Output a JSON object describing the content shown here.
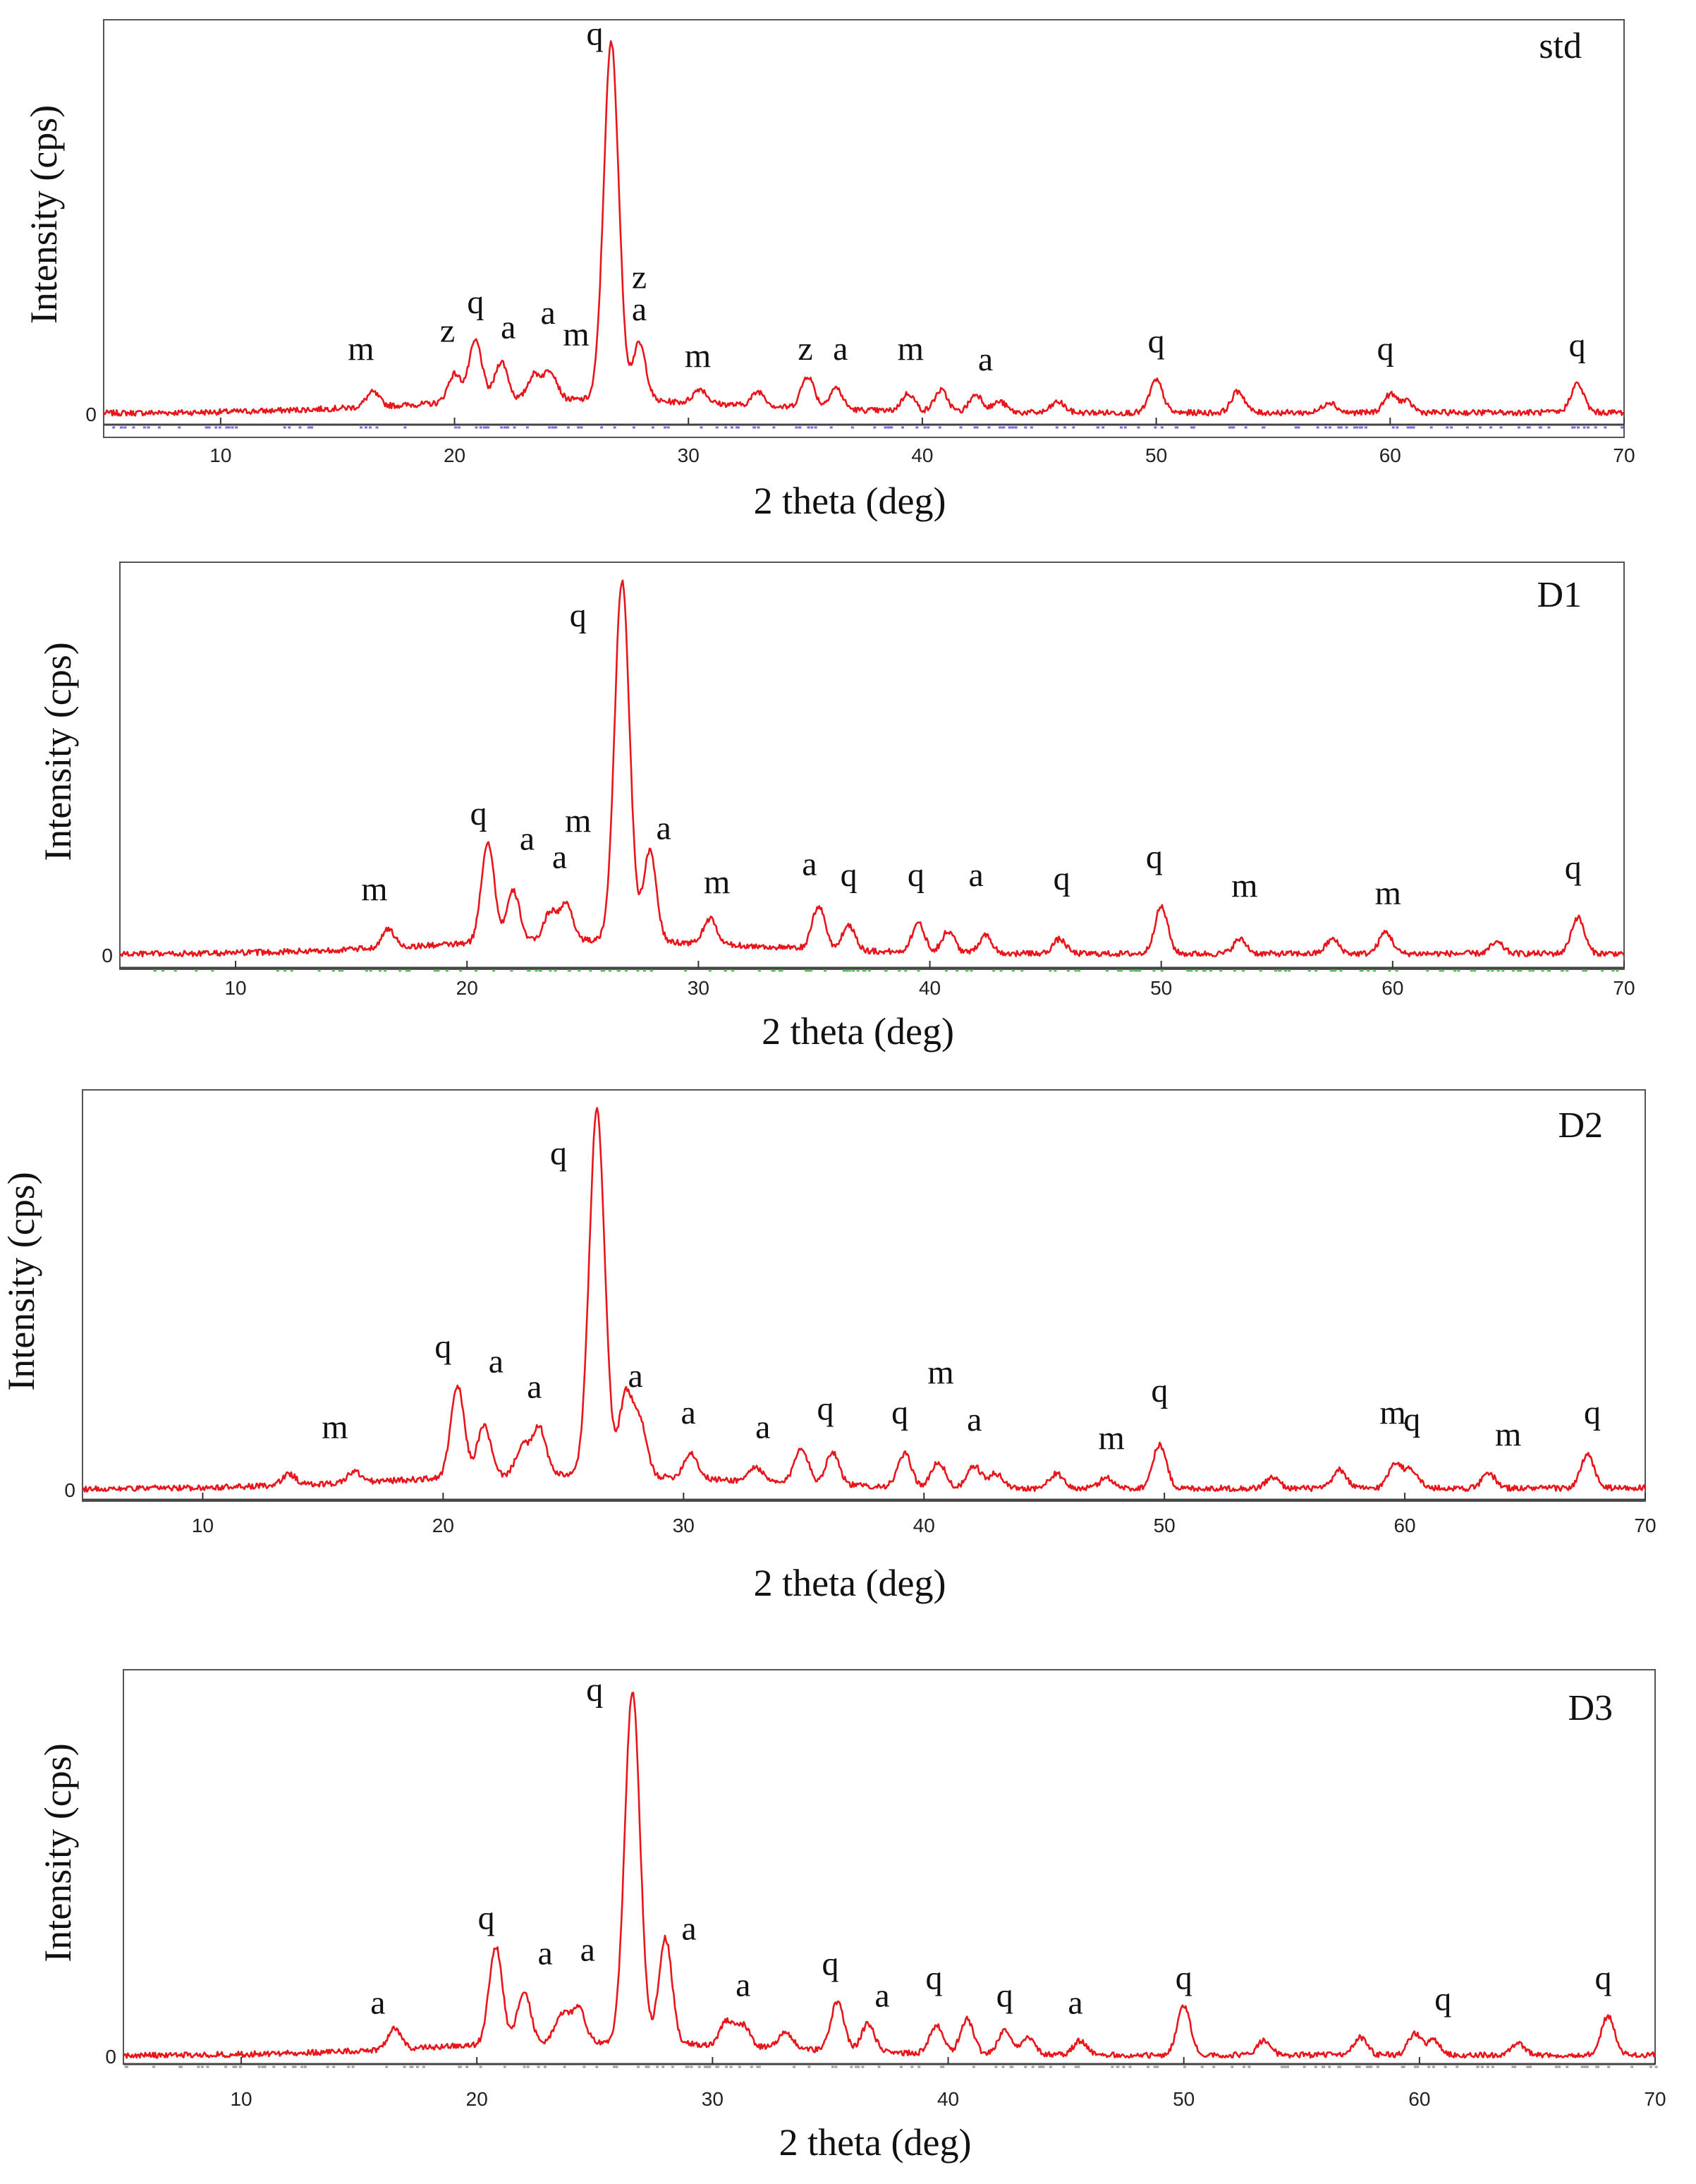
{
  "colors": {
    "trace": "#e8151b",
    "frame": "#555555",
    "text": "#111111",
    "hkl_d1": "#5bbf5b",
    "hkl_std": "#7c6cf0",
    "hkl_d3": "#9aa0a6"
  },
  "chart_data": [
    {
      "type": "line",
      "sample": "std",
      "xlabel": "2 theta (deg)",
      "ylabel": "Intensity (cps)",
      "xlim": [
        5,
        70
      ],
      "ylim": [
        0,
        105
      ],
      "xticks": [
        10,
        20,
        30,
        40,
        50,
        60,
        70
      ],
      "ytick_label": "0",
      "grid": false,
      "peaks": [
        [
          16.5,
          4
        ],
        [
          20.0,
          8
        ],
        [
          20.9,
          17
        ],
        [
          22.0,
          11
        ],
        [
          23.4,
          7
        ],
        [
          24.1,
          8
        ],
        [
          26.7,
          100
        ],
        [
          27.9,
          16
        ],
        [
          30.5,
          4
        ],
        [
          33.0,
          4
        ],
        [
          35.1,
          9
        ],
        [
          36.3,
          6
        ],
        [
          39.4,
          5
        ],
        [
          40.8,
          6
        ],
        [
          42.3,
          5
        ],
        [
          43.3,
          3
        ],
        [
          45.8,
          3
        ],
        [
          50.0,
          9
        ],
        [
          53.5,
          6
        ],
        [
          57.4,
          3
        ],
        [
          60.0,
          5
        ],
        [
          60.7,
          3
        ],
        [
          68.0,
          8
        ]
      ],
      "annotations": [
        [
          "m",
          16.0,
          16
        ],
        [
          "z",
          19.7,
          21
        ],
        [
          "q",
          20.9,
          29
        ],
        [
          "a",
          22.3,
          22
        ],
        [
          "a",
          24.0,
          26
        ],
        [
          "m",
          25.2,
          20
        ],
        [
          "q",
          26.0,
          104
        ],
        [
          "z",
          27.9,
          36
        ],
        [
          "a",
          27.9,
          27
        ],
        [
          "m",
          30.4,
          14
        ],
        [
          "z",
          35.0,
          16
        ],
        [
          "a",
          36.5,
          16
        ],
        [
          "m",
          39.5,
          16
        ],
        [
          "a",
          42.7,
          13
        ],
        [
          "q",
          50.0,
          18
        ],
        [
          "q",
          59.8,
          16
        ],
        [
          "q",
          68.0,
          17
        ]
      ]
    },
    {
      "type": "line",
      "sample": "D1",
      "xlabel": "2 theta (deg)",
      "ylabel": "Intensity (cps)",
      "xlim": [
        5,
        70
      ],
      "ylim": [
        0,
        105
      ],
      "xticks": [
        10,
        20,
        30,
        40,
        50,
        60,
        70
      ],
      "ytick_label": "0",
      "grid": false,
      "peaks": [
        [
          16.6,
          5
        ],
        [
          20.9,
          28
        ],
        [
          22.0,
          14
        ],
        [
          23.6,
          8
        ],
        [
          24.3,
          10
        ],
        [
          26.7,
          100
        ],
        [
          27.9,
          25
        ],
        [
          30.5,
          7
        ],
        [
          35.2,
          12
        ],
        [
          36.5,
          7
        ],
        [
          39.5,
          8
        ],
        [
          40.8,
          6
        ],
        [
          42.4,
          5
        ],
        [
          45.6,
          4
        ],
        [
          50.0,
          13
        ],
        [
          53.4,
          4
        ],
        [
          57.4,
          4
        ],
        [
          59.7,
          6
        ],
        [
          64.5,
          3
        ],
        [
          68.0,
          10
        ]
      ],
      "annotations": [
        [
          "m",
          16.0,
          16
        ],
        [
          "q",
          20.5,
          37
        ],
        [
          "a",
          22.6,
          30
        ],
        [
          "m",
          24.8,
          35
        ],
        [
          "a",
          24.0,
          25
        ],
        [
          "q",
          24.8,
          92
        ],
        [
          "a",
          28.5,
          33
        ],
        [
          "m",
          30.8,
          18
        ],
        [
          "a",
          34.8,
          23
        ],
        [
          "q",
          36.5,
          20
        ],
        [
          "q",
          39.4,
          20
        ],
        [
          "a",
          42.0,
          20
        ],
        [
          "q",
          45.7,
          19
        ],
        [
          "q",
          49.7,
          25
        ],
        [
          "m",
          53.6,
          17
        ],
        [
          "m",
          59.8,
          15
        ],
        [
          "q",
          67.8,
          22
        ]
      ]
    },
    {
      "type": "line",
      "sample": "D2",
      "xlabel": "2 theta (deg)",
      "ylabel": "Intensity (cps)",
      "xlim": [
        5,
        70
      ],
      "ylim": [
        0,
        105
      ],
      "xticks": [
        10,
        20,
        30,
        40,
        50,
        60,
        70
      ],
      "ytick_label": "0",
      "grid": false,
      "peaks": [
        [
          13.6,
          3
        ],
        [
          16.3,
          3
        ],
        [
          20.6,
          25
        ],
        [
          21.7,
          14
        ],
        [
          23.3,
          8
        ],
        [
          24.0,
          13
        ],
        [
          26.4,
          100
        ],
        [
          27.6,
          22
        ],
        [
          28.2,
          14
        ],
        [
          30.3,
          7
        ],
        [
          33.0,
          4
        ],
        [
          34.9,
          10
        ],
        [
          36.2,
          9
        ],
        [
          39.2,
          9
        ],
        [
          40.6,
          7
        ],
        [
          42.1,
          6
        ],
        [
          43.0,
          4
        ],
        [
          45.5,
          4
        ],
        [
          47.6,
          3
        ],
        [
          49.8,
          12
        ],
        [
          54.5,
          3
        ],
        [
          57.3,
          5
        ],
        [
          59.6,
          7
        ],
        [
          60.3,
          5
        ],
        [
          63.5,
          4
        ],
        [
          67.6,
          9
        ]
      ],
      "annotations": [
        [
          "m",
          15.5,
          15
        ],
        [
          "q",
          20.0,
          37
        ],
        [
          "a",
          22.2,
          33
        ],
        [
          "a",
          23.8,
          26
        ],
        [
          "q",
          24.8,
          90
        ],
        [
          "a",
          28.0,
          29
        ],
        [
          "a",
          30.2,
          19
        ],
        [
          "a",
          33.3,
          15
        ],
        [
          "q",
          35.9,
          20
        ],
        [
          "q",
          39.0,
          19
        ],
        [
          "m",
          40.7,
          30
        ],
        [
          "a",
          42.1,
          17
        ],
        [
          "m",
          47.8,
          12
        ],
        [
          "q",
          49.8,
          25
        ],
        [
          "m",
          59.5,
          19
        ],
        [
          "q",
          60.3,
          17
        ],
        [
          "m",
          64.3,
          13
        ],
        [
          "q",
          67.8,
          19
        ]
      ]
    },
    {
      "type": "line",
      "sample": "D3",
      "xlabel": "2 theta (deg)",
      "ylabel": "Intensity (cps)",
      "xlim": [
        5,
        70
      ],
      "ylim": [
        0,
        105
      ],
      "xticks": [
        10,
        20,
        30,
        40,
        50,
        60,
        70
      ],
      "ytick_label": "0",
      "grid": false,
      "peaks": [
        [
          16.5,
          6
        ],
        [
          20.8,
          28
        ],
        [
          22.0,
          15
        ],
        [
          23.6,
          8
        ],
        [
          24.3,
          10
        ],
        [
          26.6,
          100
        ],
        [
          28.0,
          30
        ],
        [
          30.6,
          7
        ],
        [
          31.3,
          6
        ],
        [
          33.1,
          5
        ],
        [
          35.3,
          14
        ],
        [
          36.6,
          8
        ],
        [
          39.5,
          8
        ],
        [
          40.8,
          10
        ],
        [
          42.4,
          7
        ],
        [
          43.4,
          5
        ],
        [
          45.6,
          4
        ],
        [
          50.0,
          14
        ],
        [
          53.4,
          4
        ],
        [
          57.5,
          5
        ],
        [
          59.8,
          6
        ],
        [
          60.6,
          4
        ],
        [
          64.2,
          3
        ],
        [
          68.0,
          11
        ]
      ],
      "annotations": [
        [
          "a",
          15.8,
          13
        ],
        [
          "q",
          20.4,
          37
        ],
        [
          "a",
          22.9,
          27
        ],
        [
          "a",
          24.7,
          28
        ],
        [
          "q",
          25.0,
          102
        ],
        [
          "a",
          29.0,
          34
        ],
        [
          "a",
          31.3,
          18
        ],
        [
          "q",
          35.0,
          24
        ],
        [
          "a",
          37.2,
          15
        ],
        [
          "q",
          39.4,
          20
        ],
        [
          "q",
          42.4,
          15
        ],
        [
          "a",
          45.4,
          13
        ],
        [
          "q",
          50.0,
          20
        ],
        [
          "q",
          61.0,
          14
        ],
        [
          "q",
          67.8,
          20
        ]
      ]
    }
  ]
}
